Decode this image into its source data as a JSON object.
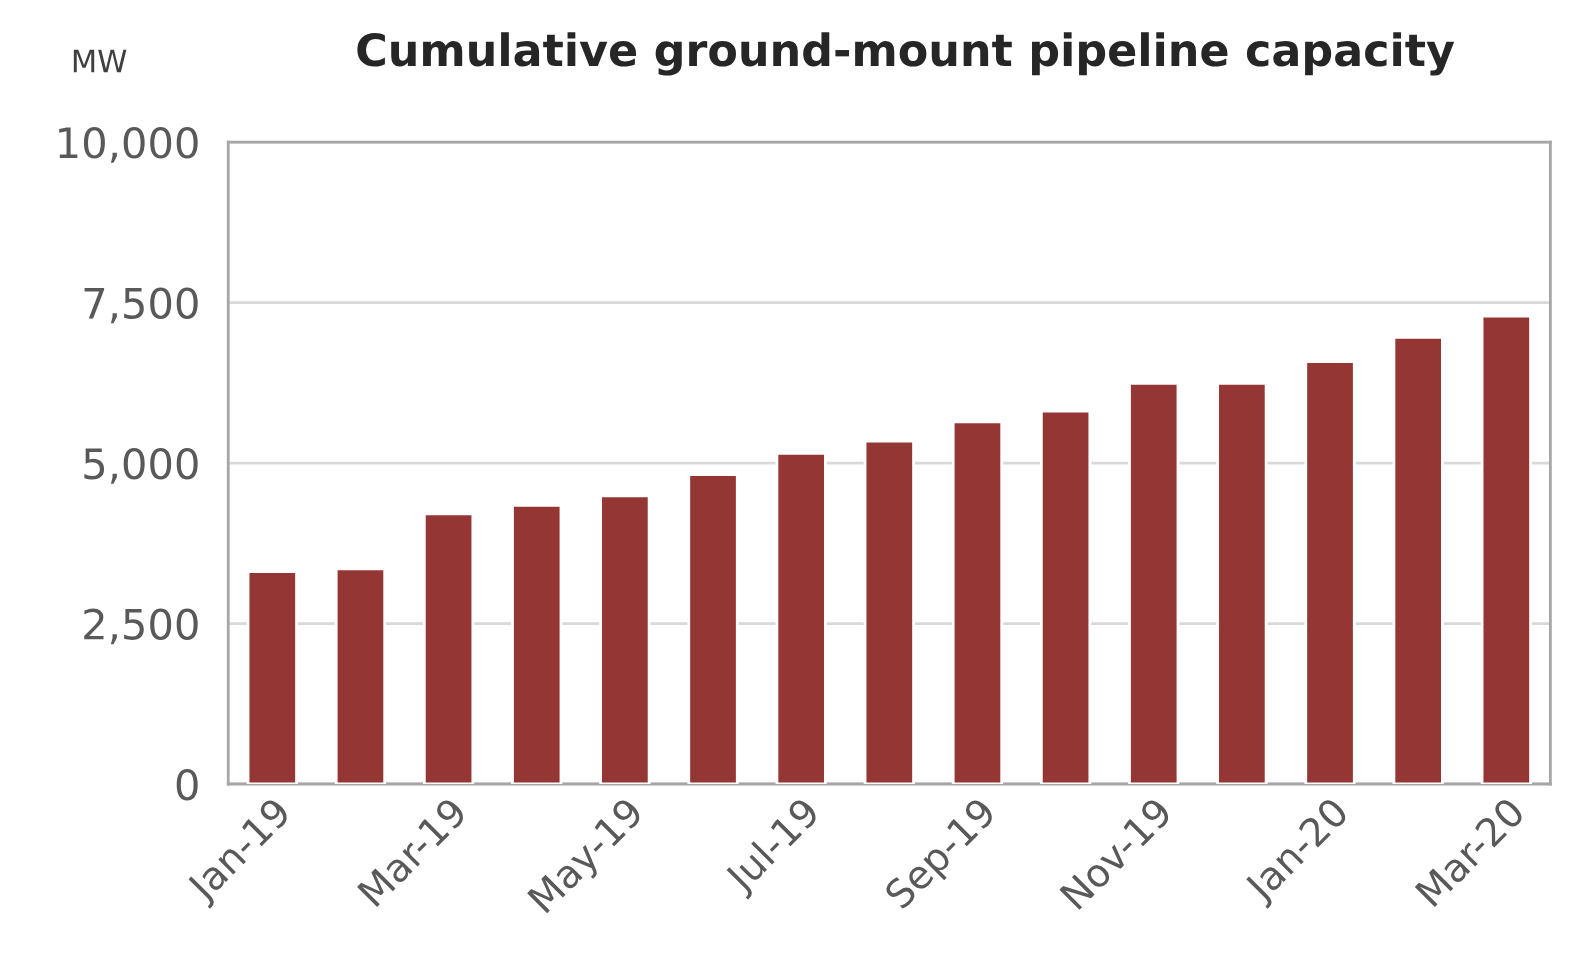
{
  "chart_data": {
    "type": "bar",
    "title": "Cumulative ground-mount pipeline capacity",
    "ylabel": "MW",
    "categories": [
      "Jan-19",
      null,
      "Mar-19",
      null,
      "May-19",
      null,
      "Jul-19",
      null,
      "Sep-19",
      null,
      "Nov-19",
      null,
      "Jan-20",
      null,
      "Mar-20"
    ],
    "values": [
      3310,
      3350,
      4210,
      4340,
      4490,
      4820,
      5150,
      5340,
      5640,
      5810,
      6240,
      6240,
      6580,
      6960,
      7290
    ],
    "color": "#943634",
    "ylim": [
      0,
      10000
    ],
    "yticks": [
      {
        "value": 0,
        "label": "0"
      },
      {
        "value": 2500,
        "label": "2,500"
      },
      {
        "value": 5000,
        "label": "5,000"
      },
      {
        "value": 7500,
        "label": "7,500"
      },
      {
        "value": 10000,
        "label": "10,000"
      }
    ],
    "grid": "y"
  }
}
